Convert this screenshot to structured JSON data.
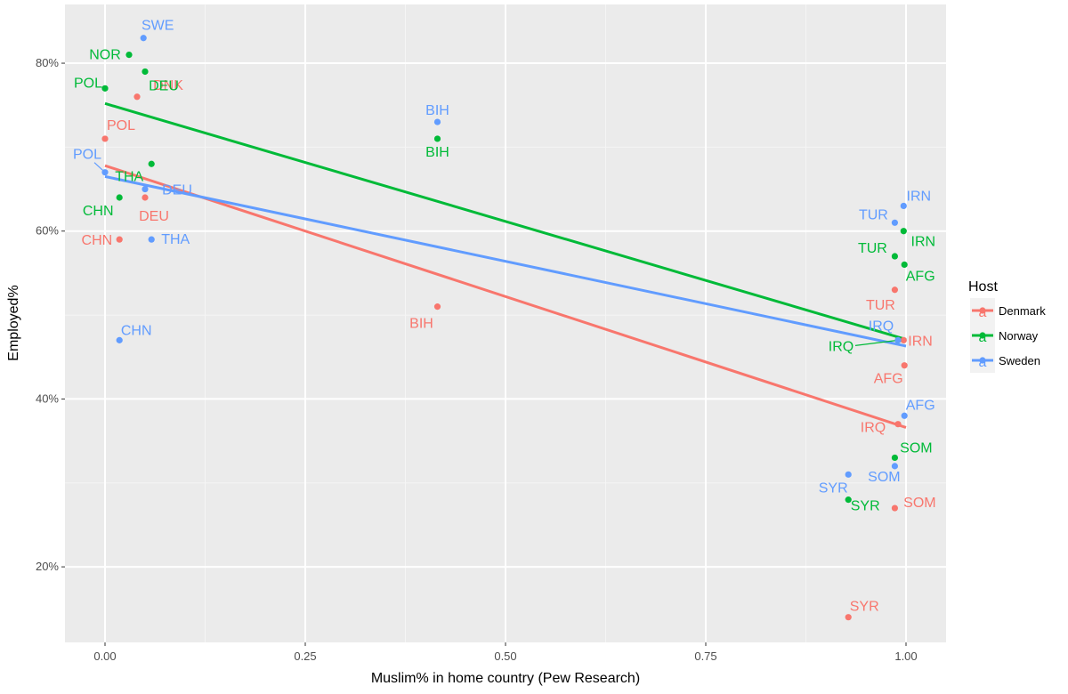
{
  "chart_data": {
    "type": "scatter",
    "title": "",
    "xlabel": "Muslim% in home country (Pew Research)",
    "ylabel": "Employed%",
    "xlim": [
      -0.05,
      1.05
    ],
    "ylim": [
      11,
      87
    ],
    "x_ticks": [
      0,
      0.25,
      0.5,
      0.75,
      1
    ],
    "x_tick_labels": [
      "0.00",
      "0.25",
      "0.50",
      "0.75",
      "1.00"
    ],
    "y_ticks": [
      20,
      40,
      60,
      80
    ],
    "y_tick_labels": [
      "20%",
      "40%",
      "60%",
      "80%"
    ],
    "grid": true,
    "legend": {
      "title": "Host",
      "position": "right",
      "entries": [
        "Denmark",
        "Norway",
        "Sweden"
      ],
      "key_glyph": "a"
    },
    "colors": {
      "Denmark": "#F8766D",
      "Norway": "#00BA38",
      "Sweden": "#619CFF"
    },
    "series": [
      {
        "name": "Denmark",
        "points": [
          {
            "label": "DNK",
            "x": 0.04,
            "y": 76
          },
          {
            "label": "POL",
            "x": 0.0,
            "y": 71
          },
          {
            "label": "DEU",
            "x": 0.05,
            "y": 64
          },
          {
            "label": "CHN",
            "x": 0.018,
            "y": 59
          },
          {
            "label": "BIH",
            "x": 0.415,
            "y": 51
          },
          {
            "label": "TUR",
            "x": 0.986,
            "y": 53
          },
          {
            "label": "IRN",
            "x": 0.997,
            "y": 47
          },
          {
            "label": "AFG",
            "x": 0.998,
            "y": 44
          },
          {
            "label": "IRQ",
            "x": 0.99,
            "y": 37
          },
          {
            "label": "SOM",
            "x": 0.986,
            "y": 27
          },
          {
            "label": "SYR",
            "x": 0.928,
            "y": 14
          }
        ],
        "trend": {
          "x": [
            0,
            1
          ],
          "y": [
            67.8,
            36.6
          ]
        }
      },
      {
        "name": "Norway",
        "points": [
          {
            "label": "NOR",
            "x": 0.03,
            "y": 81
          },
          {
            "label": "DEU",
            "x": 0.05,
            "y": 79
          },
          {
            "label": "POL",
            "x": 0.0,
            "y": 77
          },
          {
            "label": "BIH",
            "x": 0.415,
            "y": 71
          },
          {
            "label": "THA",
            "x": 0.058,
            "y": 68
          },
          {
            "label": "CHN",
            "x": 0.018,
            "y": 64
          },
          {
            "label": "IRN",
            "x": 0.997,
            "y": 60
          },
          {
            "label": "TUR",
            "x": 0.986,
            "y": 57
          },
          {
            "label": "AFG",
            "x": 0.998,
            "y": 56
          },
          {
            "label": "IRQ",
            "x": 0.99,
            "y": 47
          },
          {
            "label": "SOM",
            "x": 0.986,
            "y": 33
          },
          {
            "label": "SYR",
            "x": 0.928,
            "y": 28
          }
        ],
        "trend": {
          "x": [
            0,
            1
          ],
          "y": [
            75.2,
            47.1
          ]
        }
      },
      {
        "name": "Sweden",
        "points": [
          {
            "label": "SWE",
            "x": 0.048,
            "y": 83
          },
          {
            "label": "BIH",
            "x": 0.415,
            "y": 73
          },
          {
            "label": "POL",
            "x": 0.0,
            "y": 67
          },
          {
            "label": "DEU",
            "x": 0.05,
            "y": 65
          },
          {
            "label": "THA",
            "x": 0.058,
            "y": 59
          },
          {
            "label": "CHN",
            "x": 0.018,
            "y": 47
          },
          {
            "label": "IRN",
            "x": 0.997,
            "y": 63
          },
          {
            "label": "TUR",
            "x": 0.986,
            "y": 61
          },
          {
            "label": "IRQ",
            "x": 0.99,
            "y": 47
          },
          {
            "label": "AFG",
            "x": 0.998,
            "y": 38
          },
          {
            "label": "SOM",
            "x": 0.986,
            "y": 32
          },
          {
            "label": "SYR",
            "x": 0.928,
            "y": 31
          }
        ],
        "trend": {
          "x": [
            0,
            1
          ],
          "y": [
            66.5,
            46.3
          ]
        }
      }
    ]
  }
}
